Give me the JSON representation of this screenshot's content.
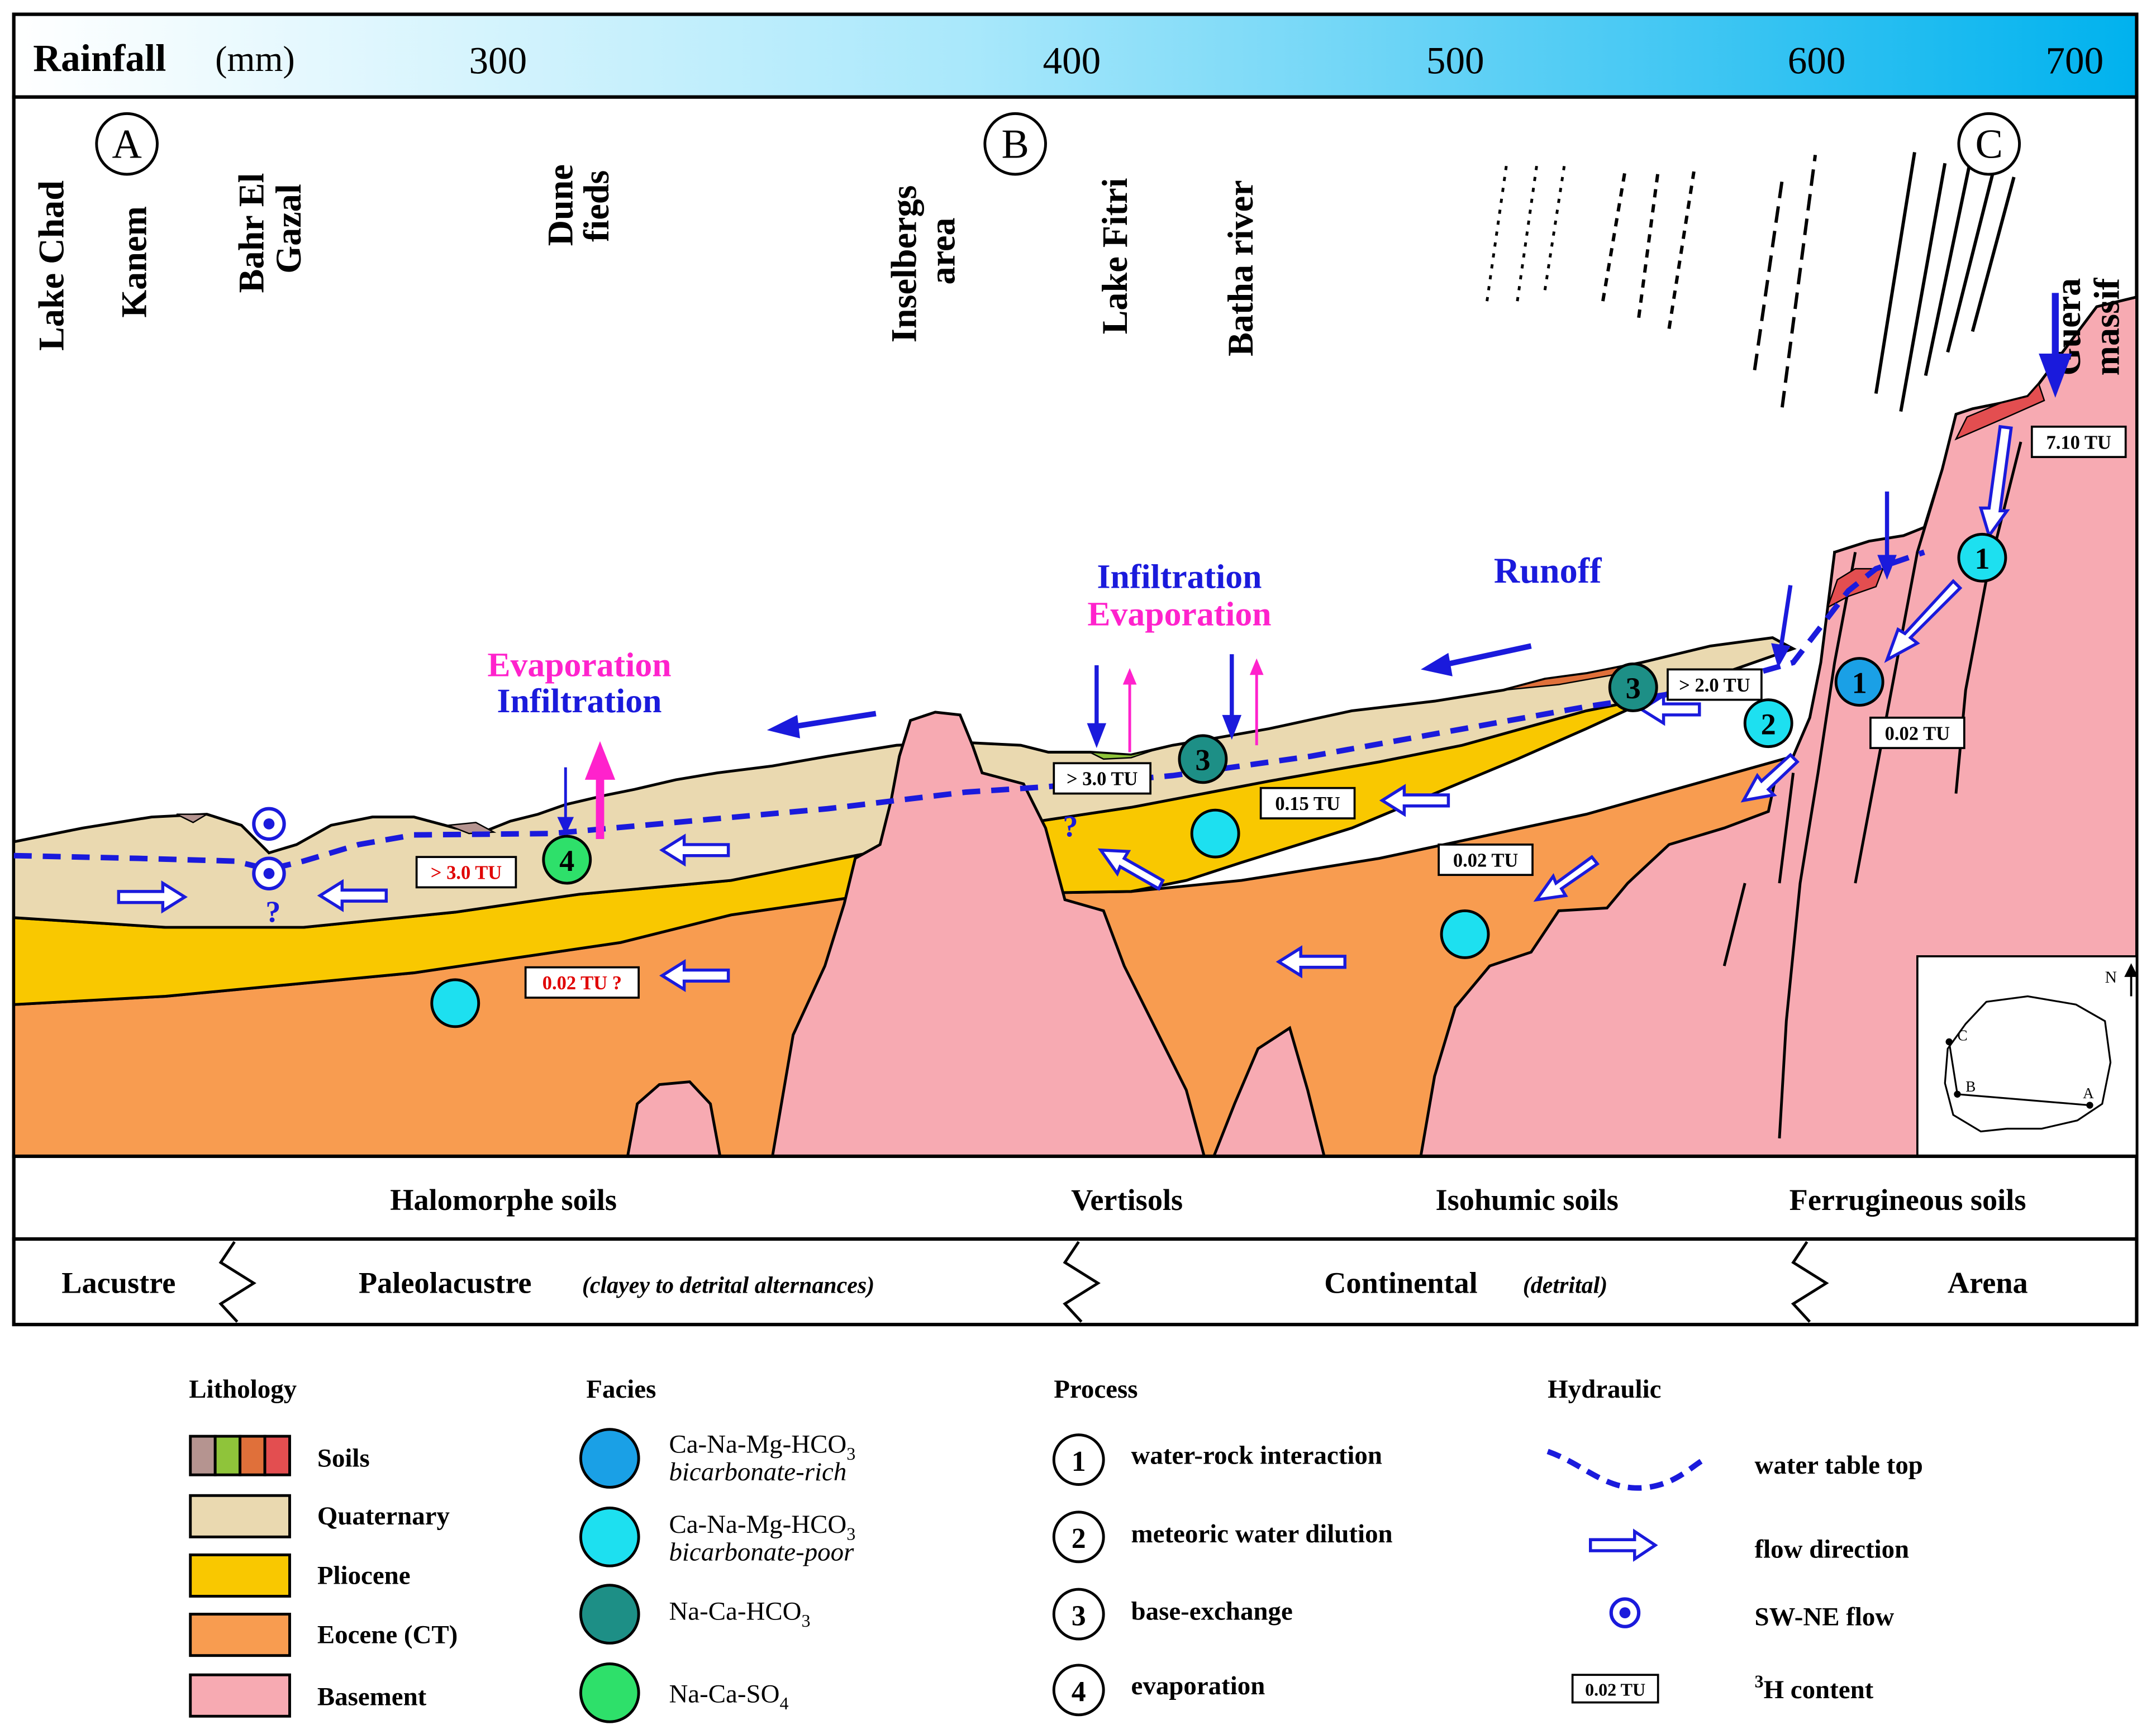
{
  "rainfall": {
    "title": "Rainfall",
    "unit": "(mm)",
    "ticks": [
      "300",
      "400",
      "500",
      "600",
      "700"
    ]
  },
  "section_points": [
    "A",
    "B",
    "C"
  ],
  "locations": {
    "lake_chad": "Lake Chad",
    "kanem": "Kanem",
    "bahr_el_gazal_1": "Bahr El",
    "bahr_el_gazal_2": "Gazal",
    "dune_1": "Dune",
    "dune_2": "fieds",
    "inselbergs_1": "Inselbergs",
    "inselbergs_2": "area",
    "lake_fitri": "Lake Fitri",
    "batha_river": "Batha river",
    "guera_1": "Guera",
    "guera_2": "massif"
  },
  "processes": {
    "evaporation": "Evaporation",
    "infiltration": "Infiltration",
    "runoff": "Runoff"
  },
  "tritium": {
    "t_7_10": "7.10 TU",
    "t_0_02_c": "0.02 TU",
    "t_2_0": "> 2.0 TU",
    "t_3_0_b": "> 3.0 TU",
    "t_0_15": "0.15 TU",
    "t_0_02_mid": "0.02 TU",
    "t_3_0_a": "> 3.0 TU",
    "t_0_02_q": "0.02 TU ?"
  },
  "circle_numbers": [
    "1",
    "1",
    "2",
    "3",
    "3",
    "4"
  ],
  "question_mark": "?",
  "soils_row": [
    "Halomorphe soils",
    "Vertisols",
    "Isohumic soils",
    "Ferrugineous soils"
  ],
  "deposits_row": {
    "lacustre": "Lacustre",
    "paleolacustre": "Paleolacustre",
    "paleolacustre_note": "(clayey to detrital alternances)",
    "continental": "Continental",
    "continental_note": "(detrital)",
    "arena": "Arena"
  },
  "inset_map": {
    "north": "N",
    "a": "A",
    "b": "B",
    "c": "C"
  },
  "legend": {
    "lithology": {
      "title": "Lithology",
      "items": [
        "Soils",
        "Quaternary",
        "Pliocene",
        "Eocene (CT)",
        "Basement"
      ]
    },
    "facies": {
      "title": "Facies",
      "items": [
        {
          "formula": "Ca-Na-Mg-HCO",
          "sub": "3",
          "note": "bicarbonate-rich"
        },
        {
          "formula": "Ca-Na-Mg-HCO",
          "sub": "3",
          "note": "bicarbonate-poor"
        },
        {
          "formula": "Na-Ca-HCO",
          "sub": "3",
          "note": ""
        },
        {
          "formula": "Na-Ca-SO",
          "sub": "4",
          "note": ""
        }
      ]
    },
    "process": {
      "title": "Process",
      "items": [
        {
          "num": "1",
          "label": "water-rock interaction"
        },
        {
          "num": "2",
          "label": "meteoric water dilution"
        },
        {
          "num": "3",
          "label": "base-exchange"
        },
        {
          "num": "4",
          "label": "evaporation"
        }
      ]
    },
    "hydraulic": {
      "title": "Hydraulic",
      "items": [
        "water table top",
        "flow direction",
        "SW-NE flow",
        "H content"
      ],
      "tu_box": "0.02 TU",
      "superscript": "3"
    }
  },
  "colors": {
    "quaternary": "#ead9b0",
    "pliocene": "#f9c800",
    "eocene": "#f89c50",
    "basement": "#f7aab2",
    "soil_brown": "#b59490",
    "soil_green": "#8fc43a",
    "soil_orange": "#e0703a",
    "soil_red": "#e34e50",
    "facies_rich": "#1aa0e6",
    "facies_poor": "#1de0f0",
    "facies_nacahco3": "#1d8f86",
    "facies_nacaso4": "#2ee06a",
    "water_blue": "#1a1adc",
    "magenta": "#ff22cc",
    "tu_red": "#e00000"
  }
}
